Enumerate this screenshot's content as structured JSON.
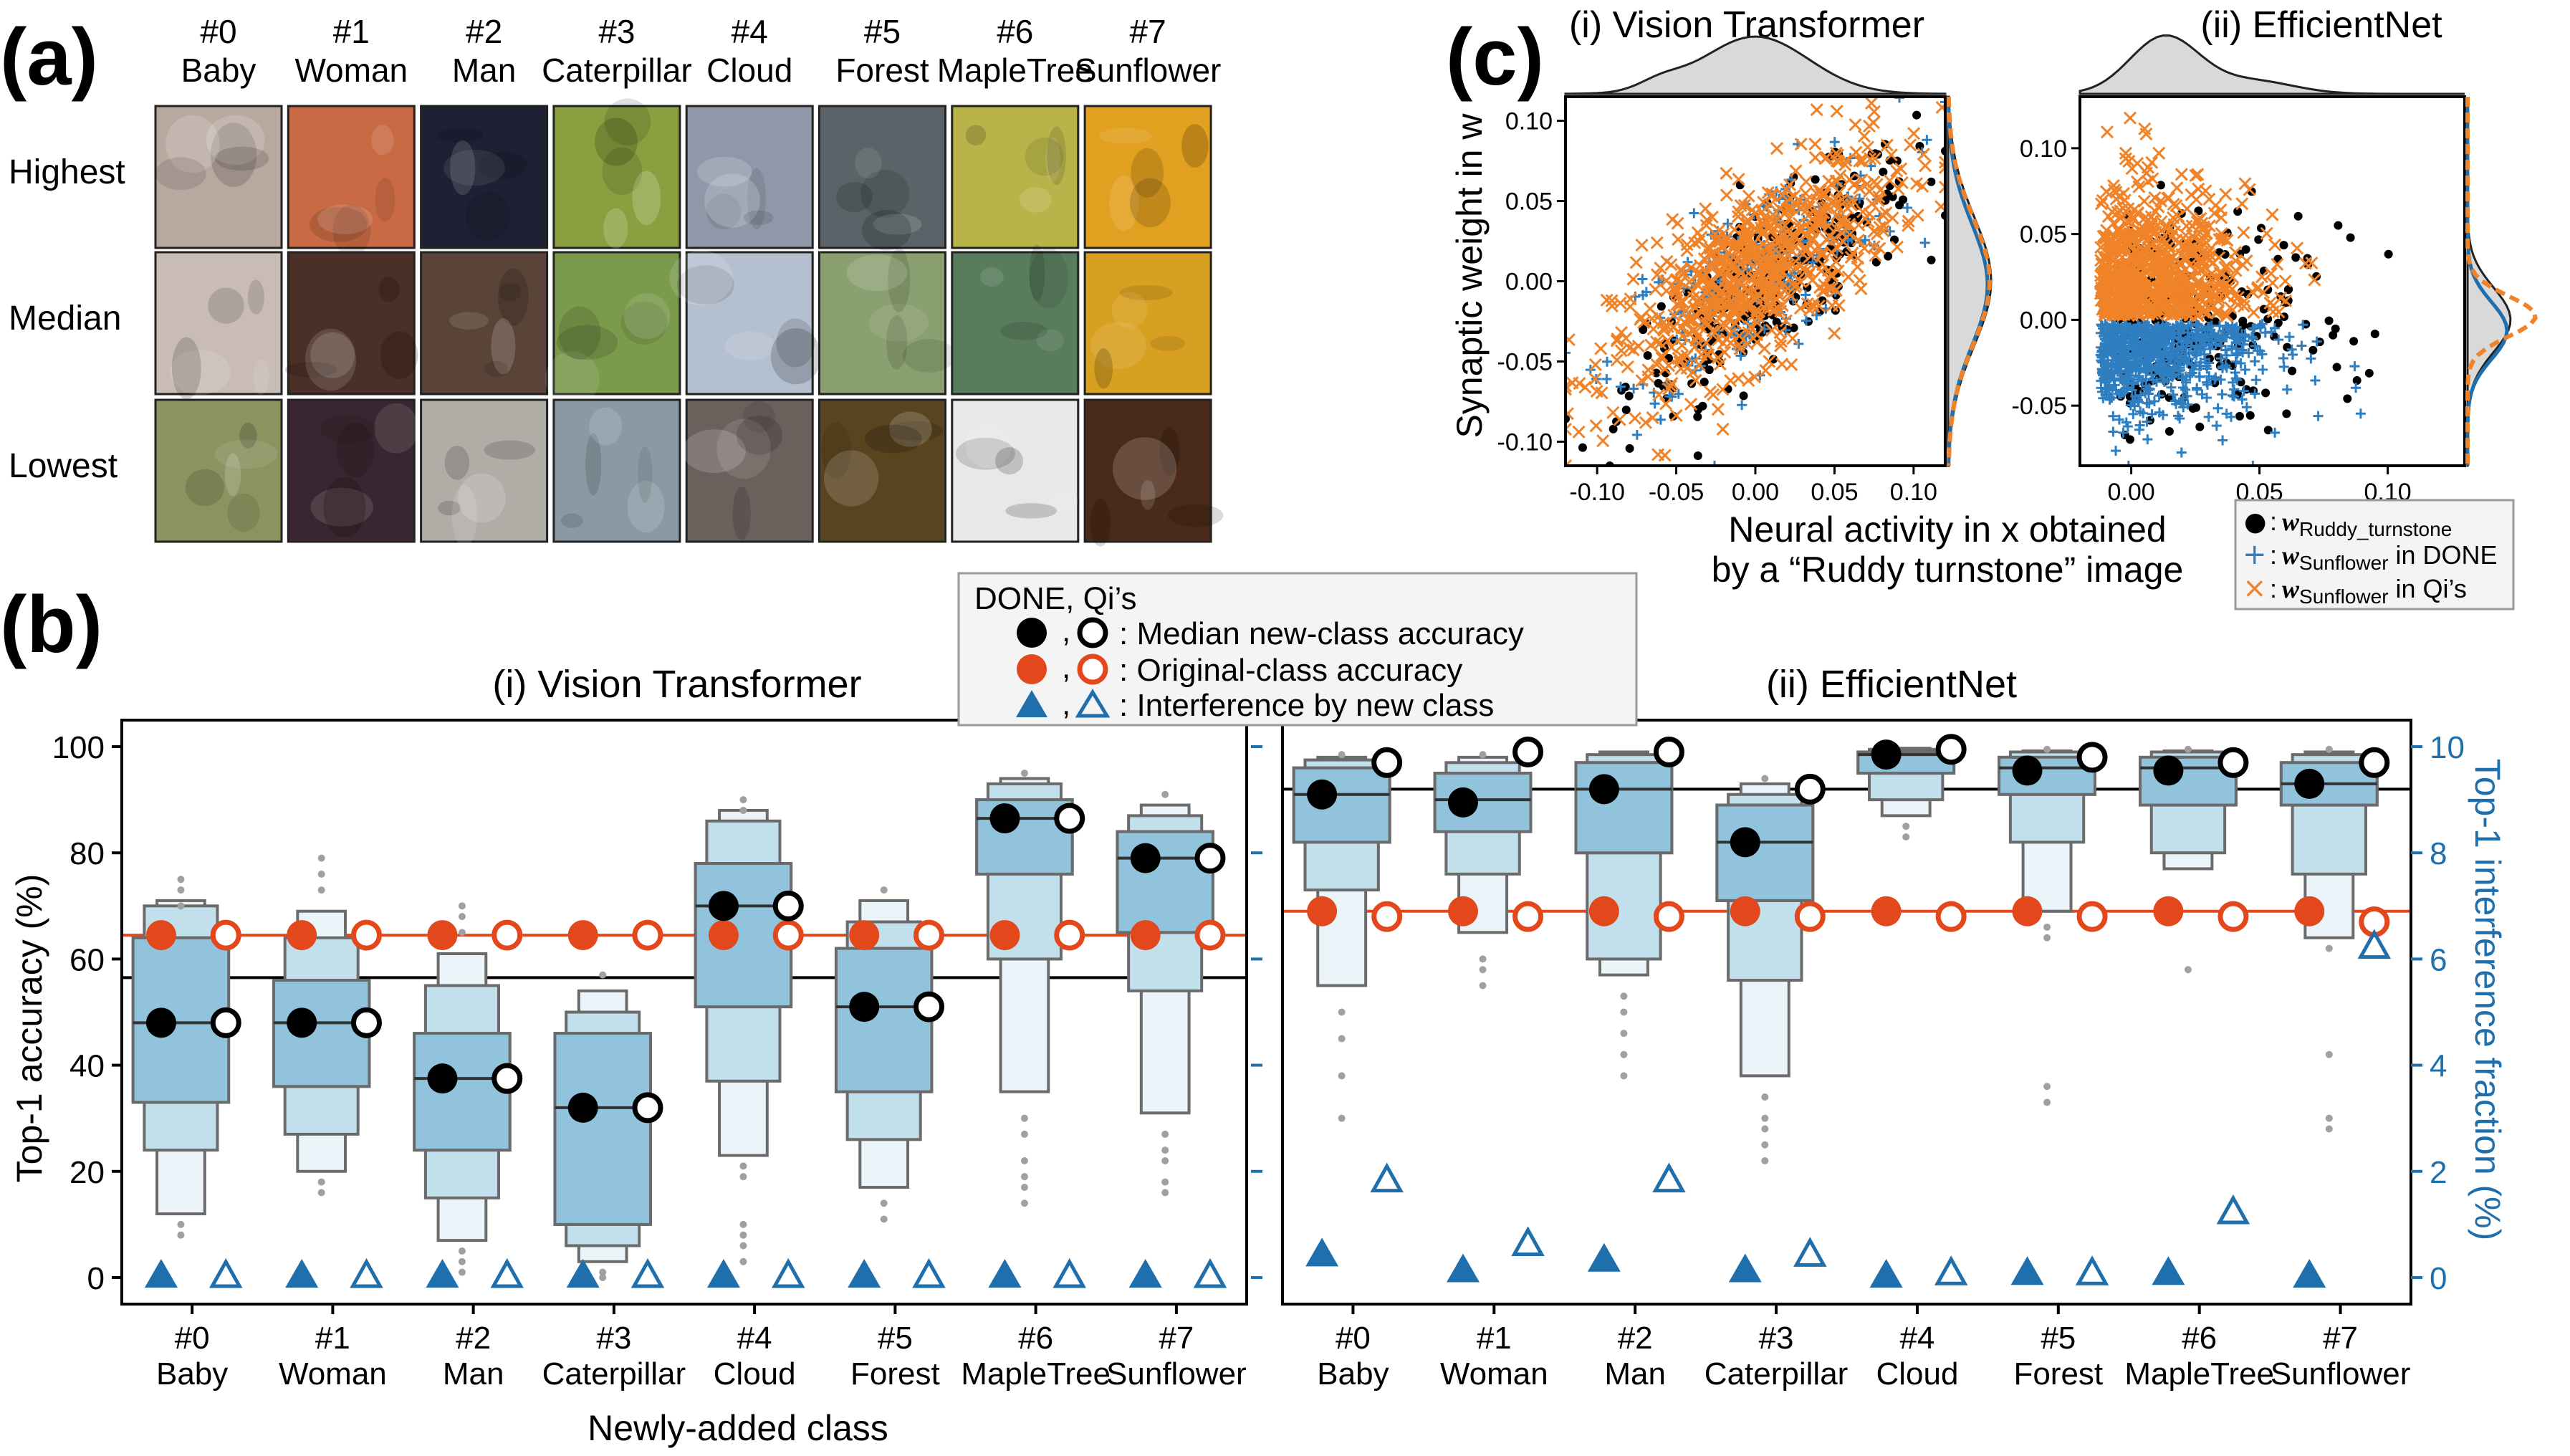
{
  "panel_labels": {
    "a": "(a)",
    "b": "(b)",
    "c": "(c)"
  },
  "panel_a": {
    "columns": [
      {
        "num": "#0",
        "name": "Baby"
      },
      {
        "num": "#1",
        "name": "Woman"
      },
      {
        "num": "#2",
        "name": "Man"
      },
      {
        "num": "#3",
        "name": "Caterpillar"
      },
      {
        "num": "#4",
        "name": "Cloud"
      },
      {
        "num": "#5",
        "name": "Forest"
      },
      {
        "num": "#6",
        "name": "MapleTree"
      },
      {
        "num": "#7",
        "name": "Sunflower"
      }
    ],
    "rows": [
      "Highest",
      "Median",
      "Lowest"
    ],
    "tile_colors": [
      [
        "#b9a8a0",
        "#c86a44",
        "#1e2034",
        "#8aa040",
        "#8e98a8",
        "#5a6468",
        "#b8b44a",
        "#e2a020"
      ],
      [
        "#c8bcb4",
        "#4a3026",
        "#5a4438",
        "#7a9a4c",
        "#b4c0d0",
        "#8aa070",
        "#587c5c",
        "#d8a020"
      ],
      [
        "#8a9460",
        "#3a2630",
        "#b0aca6",
        "#8a9aa4",
        "#6a605c",
        "#5a4420",
        "#e8e8e8",
        "#4a2a18"
      ]
    ]
  },
  "legend_b": {
    "header": "DONE, Qi’s",
    "comma": ",",
    "items": [
      ": Median new-class accuracy",
      ": Original-class accuracy",
      ": Interference by new class"
    ]
  },
  "colors": {
    "box": "#91c4dc",
    "box_edge": "#6b6b6b",
    "orange": "#e2481c",
    "blue": "#1f6fad",
    "flier": "#a0a0a0",
    "cross_blue": "#2e7ec0",
    "cross_orange": "#f08228"
  },
  "chart_data": [
    {
      "type": "boxen",
      "title": "(i) Vision Transformer",
      "xlabel": "Newly-added class",
      "ylabel": "Top-1 accuracy (%)",
      "categories": [
        "#0 Baby",
        "#1 Woman",
        "#2 Man",
        "#3 Caterpillar",
        "#4 Cloud",
        "#5 Forest",
        "#6 MapleTree",
        "#7 Sunflower"
      ],
      "cat_nums": [
        "#0",
        "#1",
        "#2",
        "#3",
        "#4",
        "#5",
        "#6",
        "#7"
      ],
      "cat_names": [
        "Baby",
        "Woman",
        "Man",
        "Caterpillar",
        "Cloud",
        "Forest",
        "MapleTree",
        "Sunflower"
      ],
      "ylim": [
        -5,
        105
      ],
      "yticks": [
        0,
        20,
        40,
        60,
        80,
        100
      ],
      "ylim_right": [
        -0.5,
        10.5
      ],
      "yticks_right": [
        0,
        2,
        4,
        6,
        8,
        10
      ],
      "baseline_black": 56.5,
      "baseline_orange": 64.5,
      "boxes": [
        {
          "levels": [
            [
              33,
              64
            ],
            [
              24,
              70
            ],
            [
              12,
              71
            ]
          ],
          "median": 48,
          "fliers": [
            8,
            10,
            70,
            73,
            75
          ]
        },
        {
          "levels": [
            [
              36,
              56
            ],
            [
              27,
              64
            ],
            [
              20,
              69
            ]
          ],
          "median": 48,
          "fliers": [
            18,
            16,
            73,
            76,
            79
          ]
        },
        {
          "levels": [
            [
              24,
              46
            ],
            [
              15,
              55
            ],
            [
              7,
              61
            ]
          ],
          "median": 37.5,
          "fliers": [
            5,
            3,
            1,
            65,
            68,
            70
          ]
        },
        {
          "levels": [
            [
              10,
              46
            ],
            [
              6,
              50
            ],
            [
              3,
              54
            ]
          ],
          "median": 32,
          "fliers": [
            1,
            0,
            57
          ]
        },
        {
          "levels": [
            [
              51,
              78
            ],
            [
              37,
              86
            ],
            [
              23,
              88
            ]
          ],
          "median": 70,
          "fliers": [
            21,
            19,
            10,
            8,
            6,
            3,
            88,
            90
          ]
        },
        {
          "levels": [
            [
              35,
              62
            ],
            [
              26,
              67
            ],
            [
              17,
              71
            ]
          ],
          "median": 51,
          "fliers": [
            14,
            11,
            73
          ]
        },
        {
          "levels": [
            [
              76,
              90
            ],
            [
              60,
              93
            ],
            [
              35,
              94
            ]
          ],
          "median": 86.5,
          "fliers": [
            30,
            27,
            22,
            19,
            17,
            14,
            95
          ]
        },
        {
          "levels": [
            [
              65,
              84
            ],
            [
              54,
              87
            ],
            [
              31,
              89
            ]
          ],
          "median": 79,
          "fliers": [
            27,
            24,
            22,
            18,
            16,
            91
          ]
        }
      ],
      "done_median": [
        48,
        48,
        37.5,
        32,
        70,
        51,
        86.5,
        79
      ],
      "qi_median": [
        48,
        48,
        37.5,
        32,
        70,
        51,
        86.5,
        79
      ],
      "done_original": [
        64.5,
        64.5,
        64.5,
        64.5,
        64.5,
        64.5,
        64.5,
        64.5
      ],
      "qi_original": [
        64.5,
        64.5,
        64.5,
        64.5,
        64.5,
        64.5,
        64.5,
        64.5
      ],
      "done_interference": [
        0,
        0,
        0,
        0,
        0,
        0,
        0,
        0
      ],
      "qi_interference": [
        0,
        0,
        0,
        0,
        0,
        0,
        0,
        0
      ]
    },
    {
      "type": "boxen",
      "title": "(ii) EfficientNet",
      "ylabel_right": "Top-1 interference fraction (%)",
      "categories": [
        "#0 Baby",
        "#1 Woman",
        "#2 Man",
        "#3 Caterpillar",
        "#4 Cloud",
        "#5 Forest",
        "#6 MapleTree",
        "#7 Sunflower"
      ],
      "cat_nums": [
        "#0",
        "#1",
        "#2",
        "#3",
        "#4",
        "#5",
        "#6",
        "#7"
      ],
      "cat_names": [
        "Baby",
        "Woman",
        "Man",
        "Caterpillar",
        "Cloud",
        "Forest",
        "MapleTree",
        "Sunflower"
      ],
      "ylim": [
        -5,
        105
      ],
      "yticks": [
        0,
        20,
        40,
        60,
        80,
        100
      ],
      "ylim_right": [
        -0.5,
        10.5
      ],
      "yticks_right": [
        0,
        2,
        4,
        6,
        8,
        10
      ],
      "baseline_black": 92,
      "baseline_orange": 69,
      "boxes": [
        {
          "levels": [
            [
              82,
              96
            ],
            [
              73,
              97.5
            ],
            [
              55,
              98
            ]
          ],
          "median": 91,
          "fliers": [
            50,
            45,
            38,
            30,
            98.5
          ]
        },
        {
          "levels": [
            [
              84,
              95
            ],
            [
              76,
              97
            ],
            [
              65,
              98
            ]
          ],
          "median": 90,
          "fliers": [
            60,
            58,
            55,
            98.5
          ]
        },
        {
          "levels": [
            [
              80,
              97
            ],
            [
              60,
              98.5
            ],
            [
              57,
              99
            ]
          ],
          "median": 92,
          "fliers": [
            53,
            50,
            46,
            42,
            38
          ]
        },
        {
          "levels": [
            [
              71,
              89
            ],
            [
              56,
              91
            ],
            [
              38,
              93
            ]
          ],
          "median": 82,
          "fliers": [
            34,
            30,
            28,
            25,
            22,
            94
          ]
        },
        {
          "levels": [
            [
              95,
              99
            ],
            [
              90,
              99.5
            ],
            [
              87,
              99.7
            ]
          ],
          "median": 98.5,
          "fliers": [
            85,
            83
          ]
        },
        {
          "levels": [
            [
              91,
              98
            ],
            [
              82,
              99
            ],
            [
              69,
              99.2
            ]
          ],
          "median": 96,
          "fliers": [
            66,
            64,
            36,
            33,
            99.5
          ]
        },
        {
          "levels": [
            [
              89,
              98
            ],
            [
              80,
              99
            ],
            [
              77,
              99.2
            ]
          ],
          "median": 96,
          "fliers": [
            58,
            99.5
          ]
        },
        {
          "levels": [
            [
              89,
              97
            ],
            [
              76,
              98.5
            ],
            [
              64,
              99
            ]
          ],
          "median": 93,
          "fliers": [
            62,
            42,
            30,
            28,
            99.5
          ]
        }
      ],
      "done_median": [
        91,
        89.5,
        92,
        82,
        98.5,
        95.5,
        95.5,
        93
      ],
      "qi_median": [
        97,
        99,
        99,
        92,
        99.5,
        98,
        97,
        97
      ],
      "done_original": [
        69,
        69,
        69,
        69,
        69,
        69,
        69,
        69
      ],
      "qi_original": [
        68,
        68,
        68,
        68,
        68,
        68,
        68,
        67
      ],
      "done_interference": [
        0.4,
        0.1,
        0.3,
        0.1,
        0,
        0.05,
        0.05,
        0
      ],
      "qi_interference": [
        1.8,
        0.6,
        1.8,
        0.4,
        0.05,
        0.05,
        1.2,
        6.2
      ]
    },
    {
      "type": "scatter",
      "title": "(i) Vision Transformer",
      "ylabel": "Synaptic weight in w",
      "xlim": [
        -0.12,
        0.12
      ],
      "ylim": [
        -0.115,
        0.115
      ],
      "xticks": [
        -0.1,
        -0.05,
        0.0,
        0.05,
        0.1
      ],
      "yticks": [
        -0.1,
        -0.05,
        0.0,
        0.05,
        0.1
      ],
      "black_center": [
        0.01,
        0.0
      ],
      "black_spread": [
        0.05,
        0.045
      ],
      "orange_center": [
        0.0,
        0.005
      ],
      "orange_spread": [
        0.045,
        0.045
      ]
    },
    {
      "type": "scatter",
      "title": "(ii) EfficientNet",
      "xlim": [
        -0.02,
        0.13
      ],
      "ylim": [
        -0.085,
        0.13
      ],
      "xticks": [
        0.0,
        0.05,
        0.1
      ],
      "yticks": [
        -0.05,
        0.0,
        0.05,
        0.1
      ],
      "black_center": [
        0.03,
        0.0
      ],
      "black_spread": [
        0.035,
        0.035
      ],
      "orange_center": [
        0.02,
        0.0
      ],
      "orange_spread": [
        0.03,
        0.03
      ]
    }
  ],
  "panel_c": {
    "xlabel_line1": "Neural activity in x obtained",
    "xlabel_line2": "by a “Ruddy turnstone” image",
    "legend": [
      {
        "bold": "w",
        "sub": "Ruddy_turnstone",
        "rest": ""
      },
      {
        "bold": "w",
        "sub": "Sunflower",
        "rest": " in DONE"
      },
      {
        "bold": "w",
        "sub": "Sunflower",
        "rest": " in Qi’s"
      }
    ],
    "legend_marks": [
      "●",
      "+",
      "×"
    ],
    "legend_colon": ":"
  }
}
